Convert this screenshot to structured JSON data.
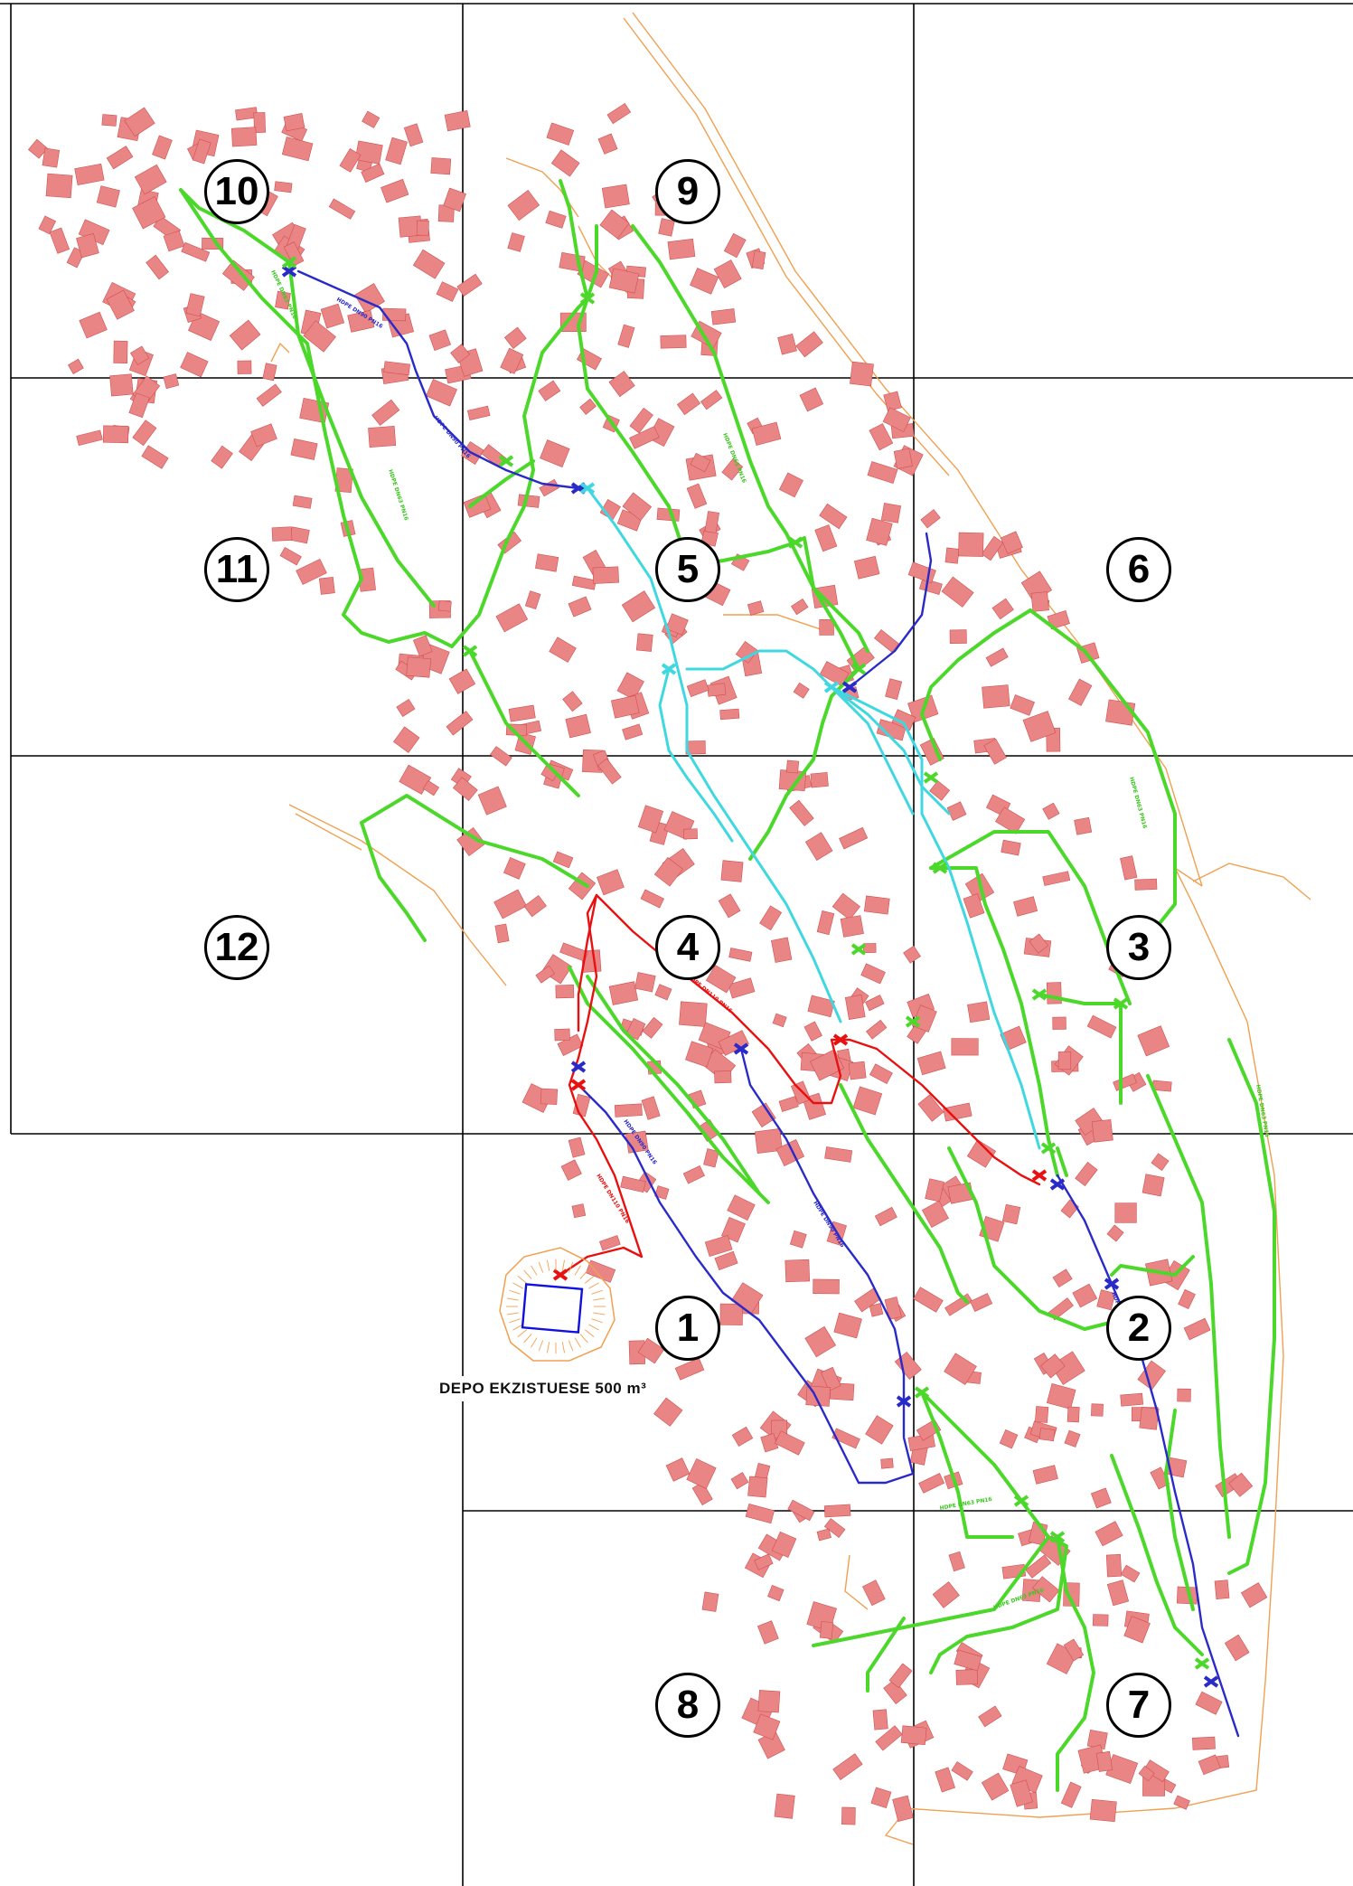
{
  "map": {
    "depot_label": "DEPO EKZISTUESE 500 m³",
    "sheets": [
      "1",
      "2",
      "3",
      "4",
      "5",
      "6",
      "7",
      "8",
      "9",
      "10",
      "11",
      "12"
    ],
    "pipe_label_distribution": "HDPE DN63 PN16",
    "pipe_label_main": "HDPE DN90 PN16",
    "pipe_label_supply": "HDPE DN110 PN16",
    "colors": {
      "grid": "#000000",
      "road": "#f0a050",
      "building": "#e87878",
      "distribution_pipe": "#4cd82a",
      "main_pipe": "#2a2ac8",
      "supply_pipe": "#e81010",
      "transfer_pipe": "#40d8e0",
      "depot": "#1010e0"
    }
  }
}
